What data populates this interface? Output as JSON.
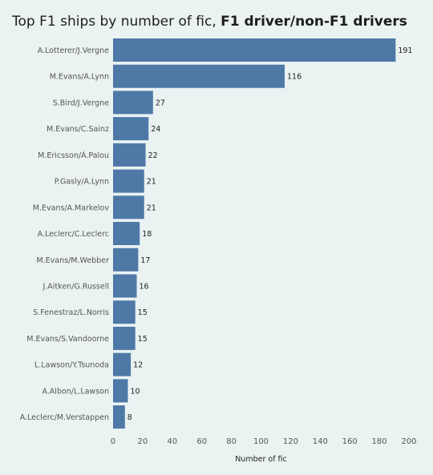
{
  "title": {
    "regular": "Top F1 ships by number of fic, ",
    "bold": "F1 driver/non-F1 drivers"
  },
  "chart_data": {
    "type": "bar",
    "orientation": "horizontal",
    "title": "Top F1 ships by number of fic, F1 driver/non-F1 drivers",
    "xlabel": "Number of fic",
    "ylabel": "",
    "xlim": [
      0,
      200
    ],
    "x_ticks": [
      0,
      20,
      40,
      60,
      80,
      100,
      120,
      140,
      160,
      180,
      200
    ],
    "grid": false,
    "bar_color": "#4e79a7",
    "categories": [
      "A.Lotterer/J.Vergne",
      "M.Evans/A.Lynn",
      "S.Bird/J.Vergne",
      "M.Evans/C.Sainz",
      "M.Ericsson/Á.Palou",
      "P.Gasly/A.Lynn",
      "M.Evans/A.Markelov",
      "A.Leclerc/C.Leclerc",
      "M.Evans/M.Webber",
      "J.Aitken/G.Russell",
      "S.Fenestraz/L.Norris",
      "M.Evans/S.Vandoorne",
      "L.Lawson/Y.Tsunoda",
      "A.Albon/L.Lawson",
      "A.Leclerc/M.Verstappen"
    ],
    "values": [
      191,
      116,
      27,
      24,
      22,
      21,
      21,
      18,
      17,
      16,
      15,
      15,
      12,
      10,
      8
    ]
  }
}
